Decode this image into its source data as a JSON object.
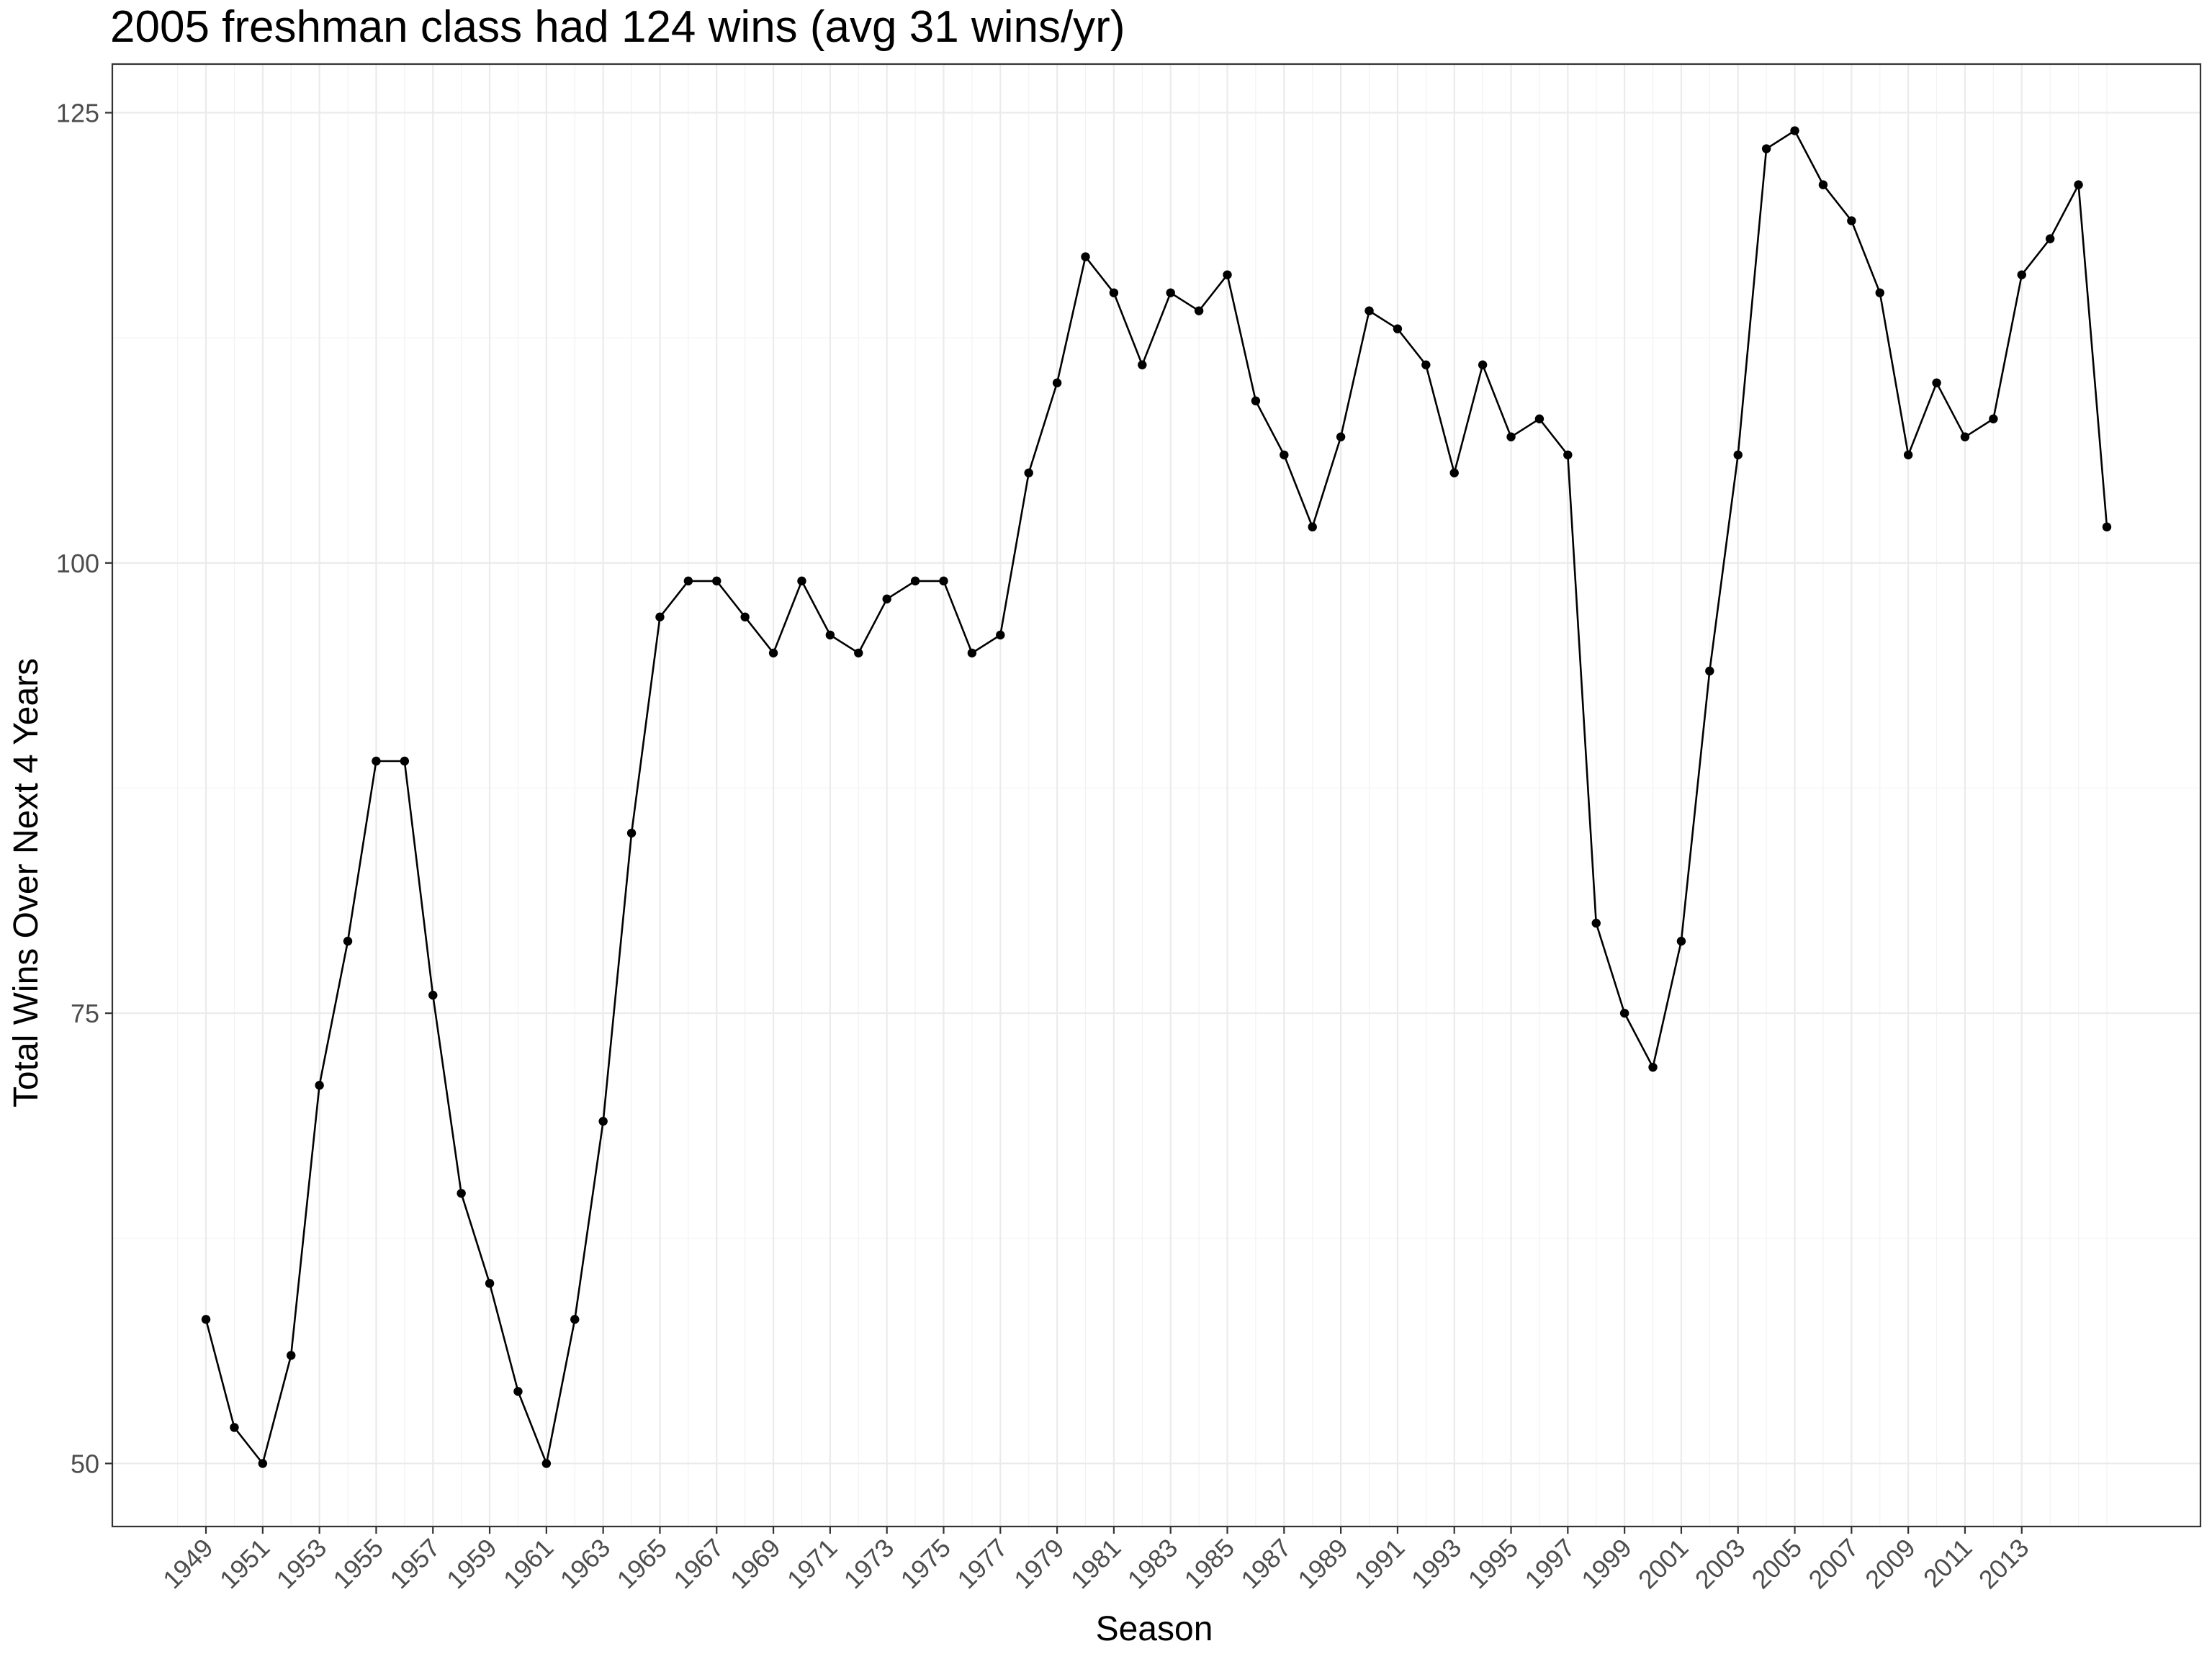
{
  "chart_data": {
    "type": "line",
    "title": "2005 freshman class had 124 wins (avg 31 wins/yr)",
    "xlabel": "Season",
    "ylabel": "Total Wins Over Next 4 Years",
    "x": [
      1949,
      1950,
      1951,
      1952,
      1953,
      1954,
      1955,
      1956,
      1957,
      1958,
      1959,
      1960,
      1961,
      1962,
      1963,
      1964,
      1965,
      1966,
      1967,
      1968,
      1969,
      1970,
      1971,
      1972,
      1973,
      1974,
      1975,
      1976,
      1977,
      1978,
      1979,
      1980,
      1981,
      1982,
      1983,
      1984,
      1985,
      1986,
      1987,
      1988,
      1989,
      1990,
      1991,
      1992,
      1993,
      1994,
      1995,
      1996,
      1997,
      1998,
      1999,
      2000,
      2001,
      2002,
      2003,
      2004,
      2005,
      2006,
      2007,
      2008,
      2009,
      2010,
      2011,
      2012,
      2013,
      2014,
      2015,
      2016
    ],
    "values": [
      58,
      52,
      50,
      56,
      71,
      79,
      89,
      89,
      76,
      65,
      60,
      54,
      50,
      58,
      69,
      85,
      97,
      99,
      99,
      97,
      95,
      99,
      96,
      95,
      98,
      99,
      99,
      95,
      96,
      105,
      110,
      117,
      115,
      111,
      115,
      114,
      116,
      109,
      106,
      102,
      107,
      114,
      113,
      111,
      105,
      111,
      107,
      108,
      106,
      80,
      75,
      72,
      79,
      94,
      106,
      123,
      124,
      121,
      119,
      115,
      106,
      110,
      107,
      108,
      116,
      118,
      121,
      102
    ],
    "xlim": [
      1945.7,
      2019.3
    ],
    "ylim": [
      46.5,
      127.7
    ],
    "x_tick_labels": [
      "1949",
      "1951",
      "1953",
      "1955",
      "1957",
      "1959",
      "1961",
      "1963",
      "1965",
      "1967",
      "1969",
      "1971",
      "1973",
      "1975",
      "1977",
      "1979",
      "1981",
      "1983",
      "1985",
      "1987",
      "1989",
      "1991",
      "1993",
      "1995",
      "1997",
      "1999",
      "2001",
      "2003",
      "2005",
      "2007",
      "2009",
      "2011",
      "2013"
    ],
    "y_tick_labels": [
      "50",
      "75",
      "100",
      "125"
    ],
    "grid": true,
    "legend": "none"
  }
}
